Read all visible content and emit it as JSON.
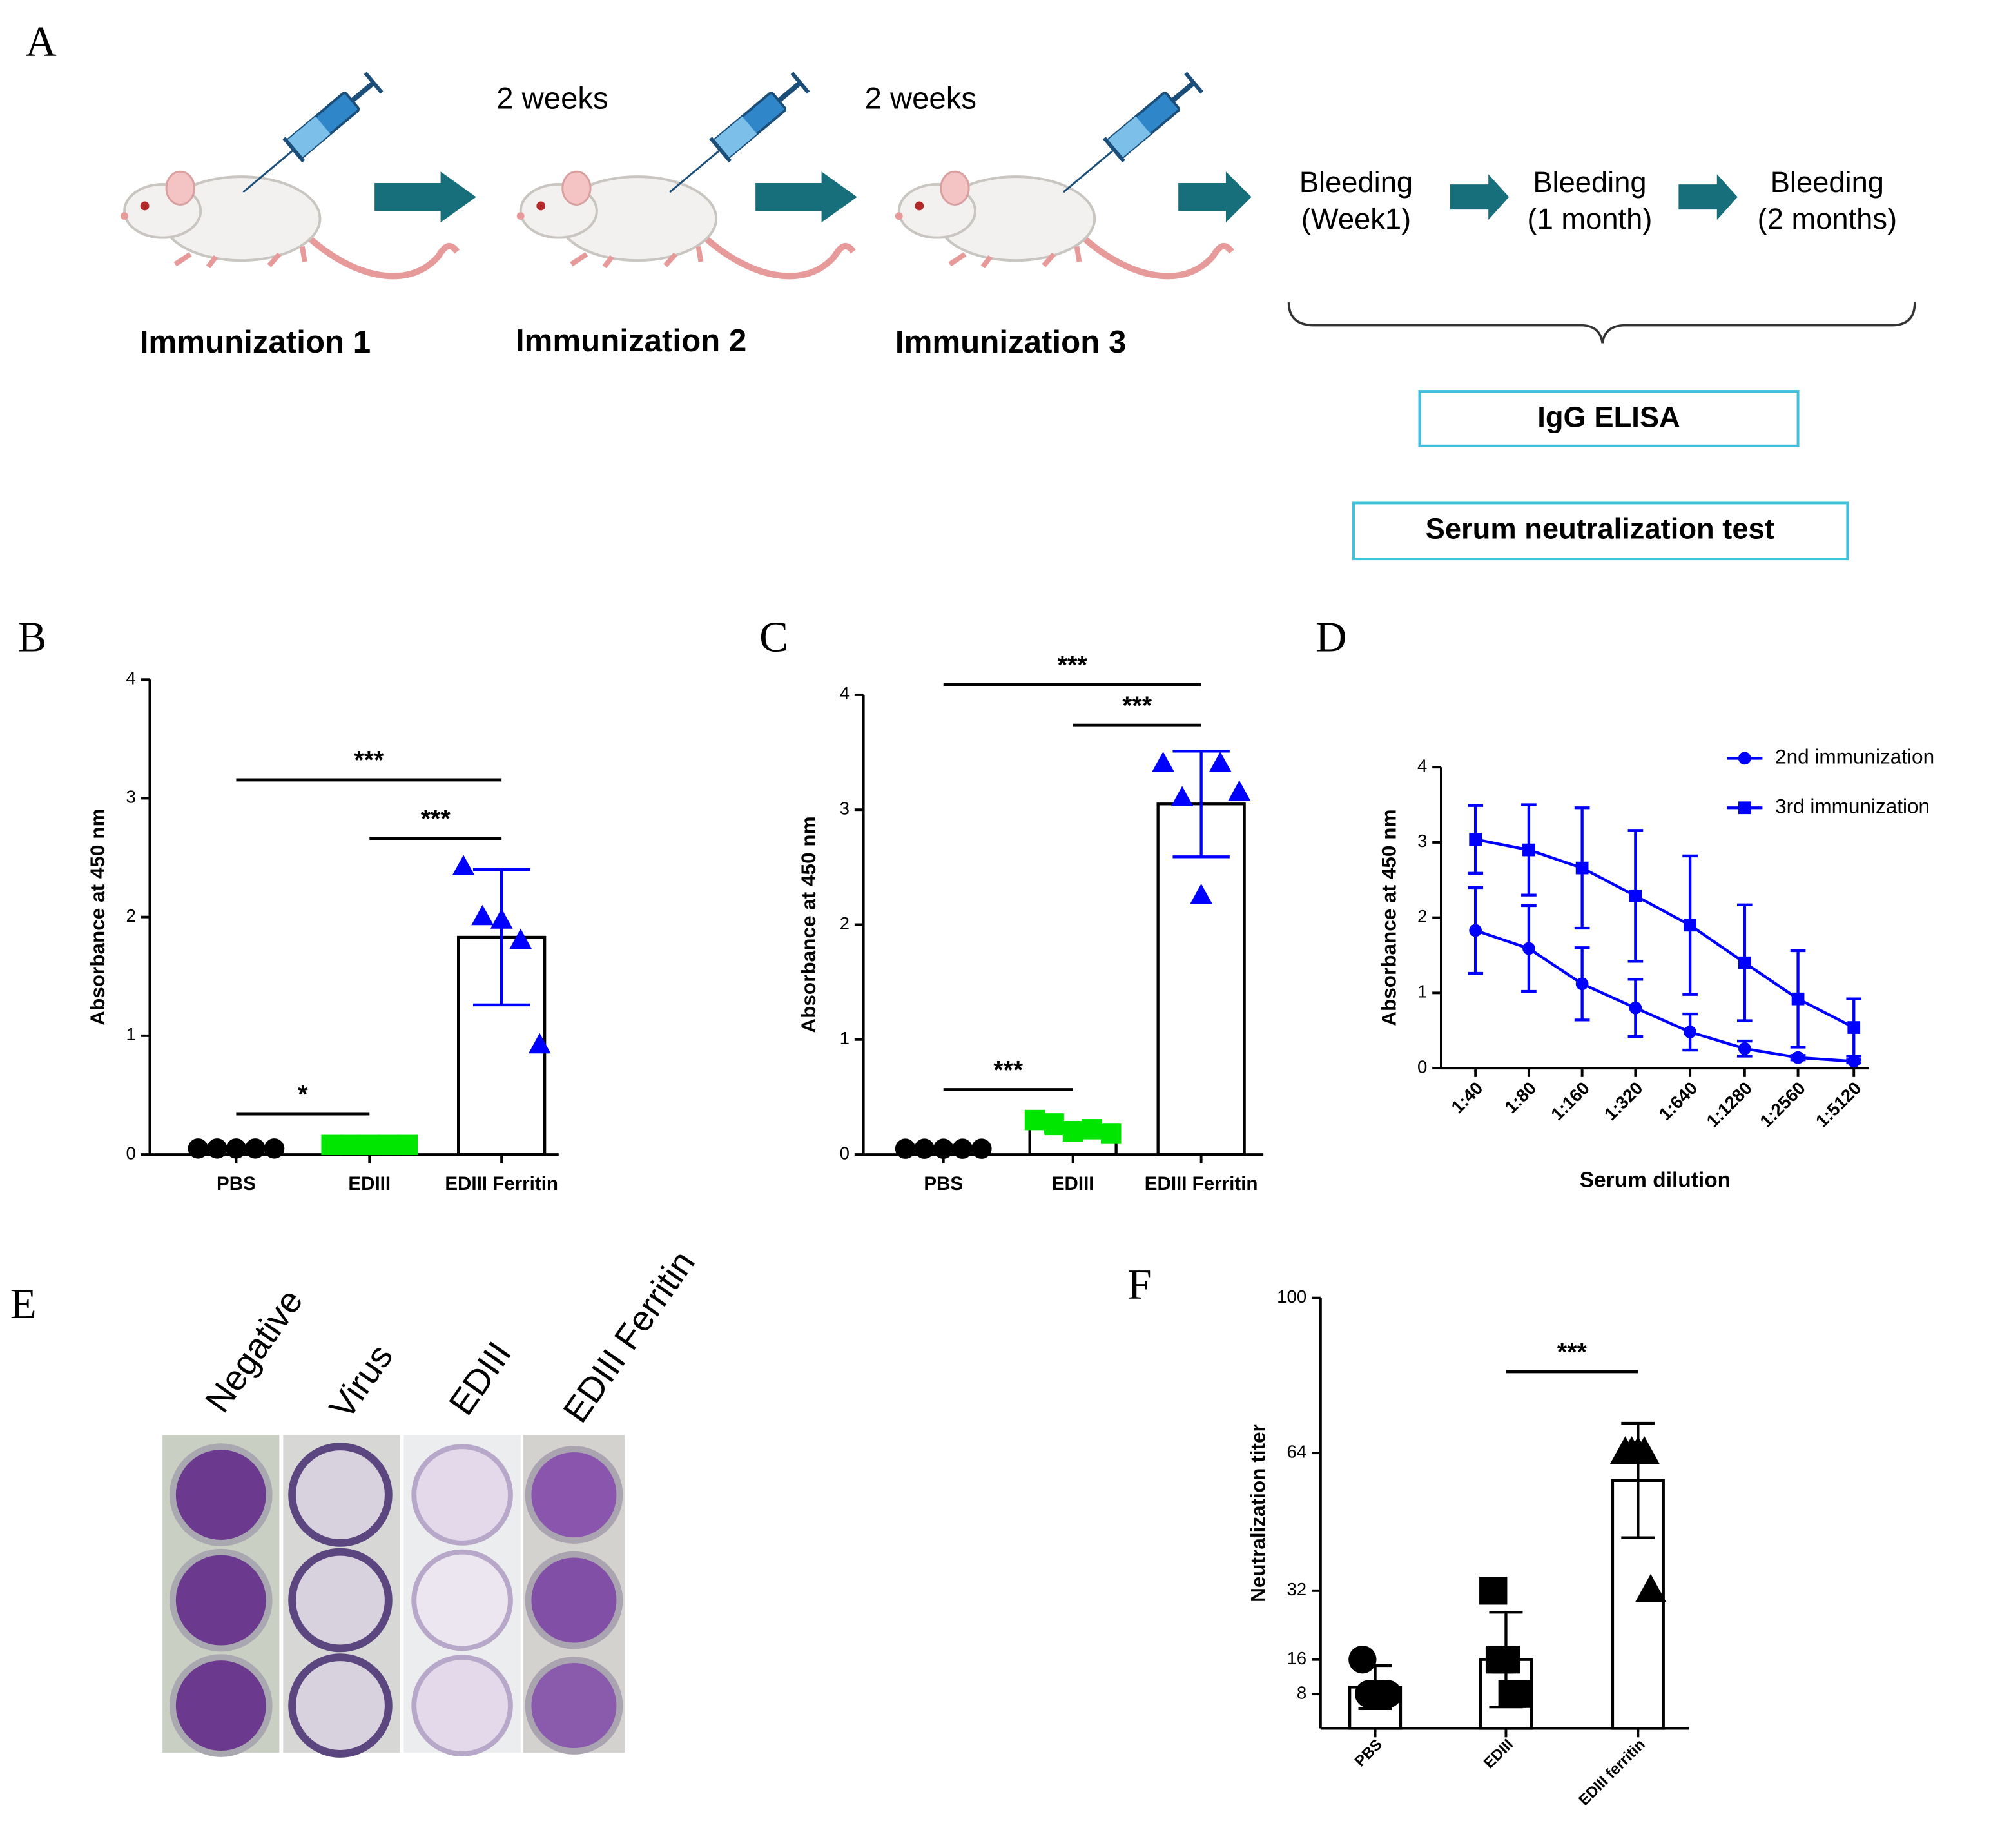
{
  "panel_a": {
    "label": "A",
    "interval_labels": [
      "2 weeks",
      "2 weeks"
    ],
    "immunizations": [
      "Immunization 1",
      "Immunization 2",
      "Immunization 3"
    ],
    "bleedings": [
      [
        "Bleeding",
        "(Week1)"
      ],
      [
        "Bleeding",
        "(1 month)"
      ],
      [
        "Bleeding",
        "(2 months)"
      ]
    ],
    "assays": [
      "IgG ELISA",
      "Serum neutralization test"
    ]
  },
  "panel_e": {
    "label": "E",
    "columns": [
      "Negative",
      "Virus",
      "EDIII",
      "EDIII Ferritin"
    ]
  },
  "chart_data": [
    {
      "type": "bar",
      "panel_label": "B",
      "ylabel": "Absorbance at 450 nm",
      "categories": [
        "PBS",
        "EDIII",
        "EDIII Ferritin"
      ],
      "values": [
        0.05,
        0.08,
        1.83
      ],
      "errors": [
        null,
        null,
        0.57
      ],
      "points": [
        [
          0.05,
          0.05,
          0.05,
          0.05,
          0.05
        ],
        [
          0.08,
          0.08,
          0.08,
          0.08,
          0.08
        ],
        [
          2.42,
          2.0,
          1.97,
          1.8,
          0.92
        ]
      ],
      "markers": [
        "circle",
        "square",
        "triangle"
      ],
      "colors": [
        "#000000",
        "#00e600",
        "#0000ff"
      ],
      "ylim": [
        0,
        4
      ],
      "yticks": [
        0,
        1,
        2,
        3,
        4
      ],
      "annotations": [
        {
          "text": "*",
          "between": [
            0,
            1
          ]
        },
        {
          "text": "***",
          "between": [
            1,
            2
          ]
        },
        {
          "text": "***",
          "between": [
            0,
            2
          ]
        }
      ]
    },
    {
      "type": "bar",
      "panel_label": "C",
      "ylabel": "Absorbance at 450 nm",
      "categories": [
        "PBS",
        "EDIII",
        "EDIII Ferritin"
      ],
      "values": [
        0.05,
        0.23,
        3.05
      ],
      "errors": [
        null,
        0.05,
        0.46
      ],
      "points": [
        [
          0.05,
          0.05,
          0.05,
          0.05,
          0.05
        ],
        [
          0.3,
          0.27,
          0.2,
          0.22,
          0.18
        ],
        [
          3.4,
          3.1,
          2.25,
          3.4,
          3.15
        ]
      ],
      "markers": [
        "circle",
        "square",
        "triangle"
      ],
      "colors": [
        "#000000",
        "#00e600",
        "#0000ff"
      ],
      "ylim": [
        0,
        4
      ],
      "yticks": [
        0,
        1,
        2,
        3,
        4
      ],
      "annotations": [
        {
          "text": "***",
          "between": [
            0,
            1
          ]
        },
        {
          "text": "***",
          "between": [
            1,
            2
          ]
        },
        {
          "text": "***",
          "between": [
            0,
            2
          ]
        }
      ]
    },
    {
      "type": "line",
      "panel_label": "D",
      "ylabel": "Absorbance at 450 nm",
      "xlabel": "Serum dilution",
      "categories": [
        "1:40",
        "1:80",
        "1:160",
        "1:320",
        "1:640",
        "1:1280",
        "1:2560",
        "1:5120"
      ],
      "rotated_xlabels": true,
      "series": [
        {
          "name": "2nd immunization",
          "color": "#0000ff",
          "marker": "circle",
          "values": [
            1.83,
            1.59,
            1.12,
            0.8,
            0.48,
            0.26,
            0.14,
            0.09
          ],
          "errors": [
            0.57,
            0.57,
            0.48,
            0.38,
            0.24,
            0.1,
            0.03,
            0.02
          ]
        },
        {
          "name": "3rd immunization",
          "color": "#0000ff",
          "marker": "square",
          "values": [
            3.04,
            2.9,
            2.66,
            2.29,
            1.9,
            1.4,
            0.92,
            0.54
          ],
          "errors": [
            0.45,
            0.6,
            0.8,
            0.87,
            0.92,
            0.77,
            0.64,
            0.38
          ]
        }
      ],
      "ylim": [
        0,
        4
      ],
      "yticks": [
        0,
        1,
        2,
        3,
        4
      ],
      "legend": "upper right"
    },
    {
      "type": "bar",
      "panel_label": "F",
      "ylabel": "Neutralization titer",
      "categories": [
        "PBS",
        "EDIII",
        "EDIII ferritin"
      ],
      "rotated_xlabels": true,
      "values": [
        9.6,
        16,
        57.6
      ],
      "errors": [
        5,
        11,
        13.3
      ],
      "points": [
        [
          16,
          8,
          8,
          8,
          8
        ],
        [
          32,
          16,
          16,
          8,
          8
        ],
        [
          64,
          64,
          64,
          64,
          32
        ]
      ],
      "markers": [
        "circle",
        "square",
        "triangle"
      ],
      "colors": [
        "#000000",
        "#000000",
        "#000000"
      ],
      "ylim": [
        0,
        100
      ],
      "yticks": [
        8,
        16,
        32,
        64,
        100
      ],
      "annotations": [
        {
          "text": "***",
          "between": [
            1,
            2
          ]
        }
      ]
    }
  ]
}
